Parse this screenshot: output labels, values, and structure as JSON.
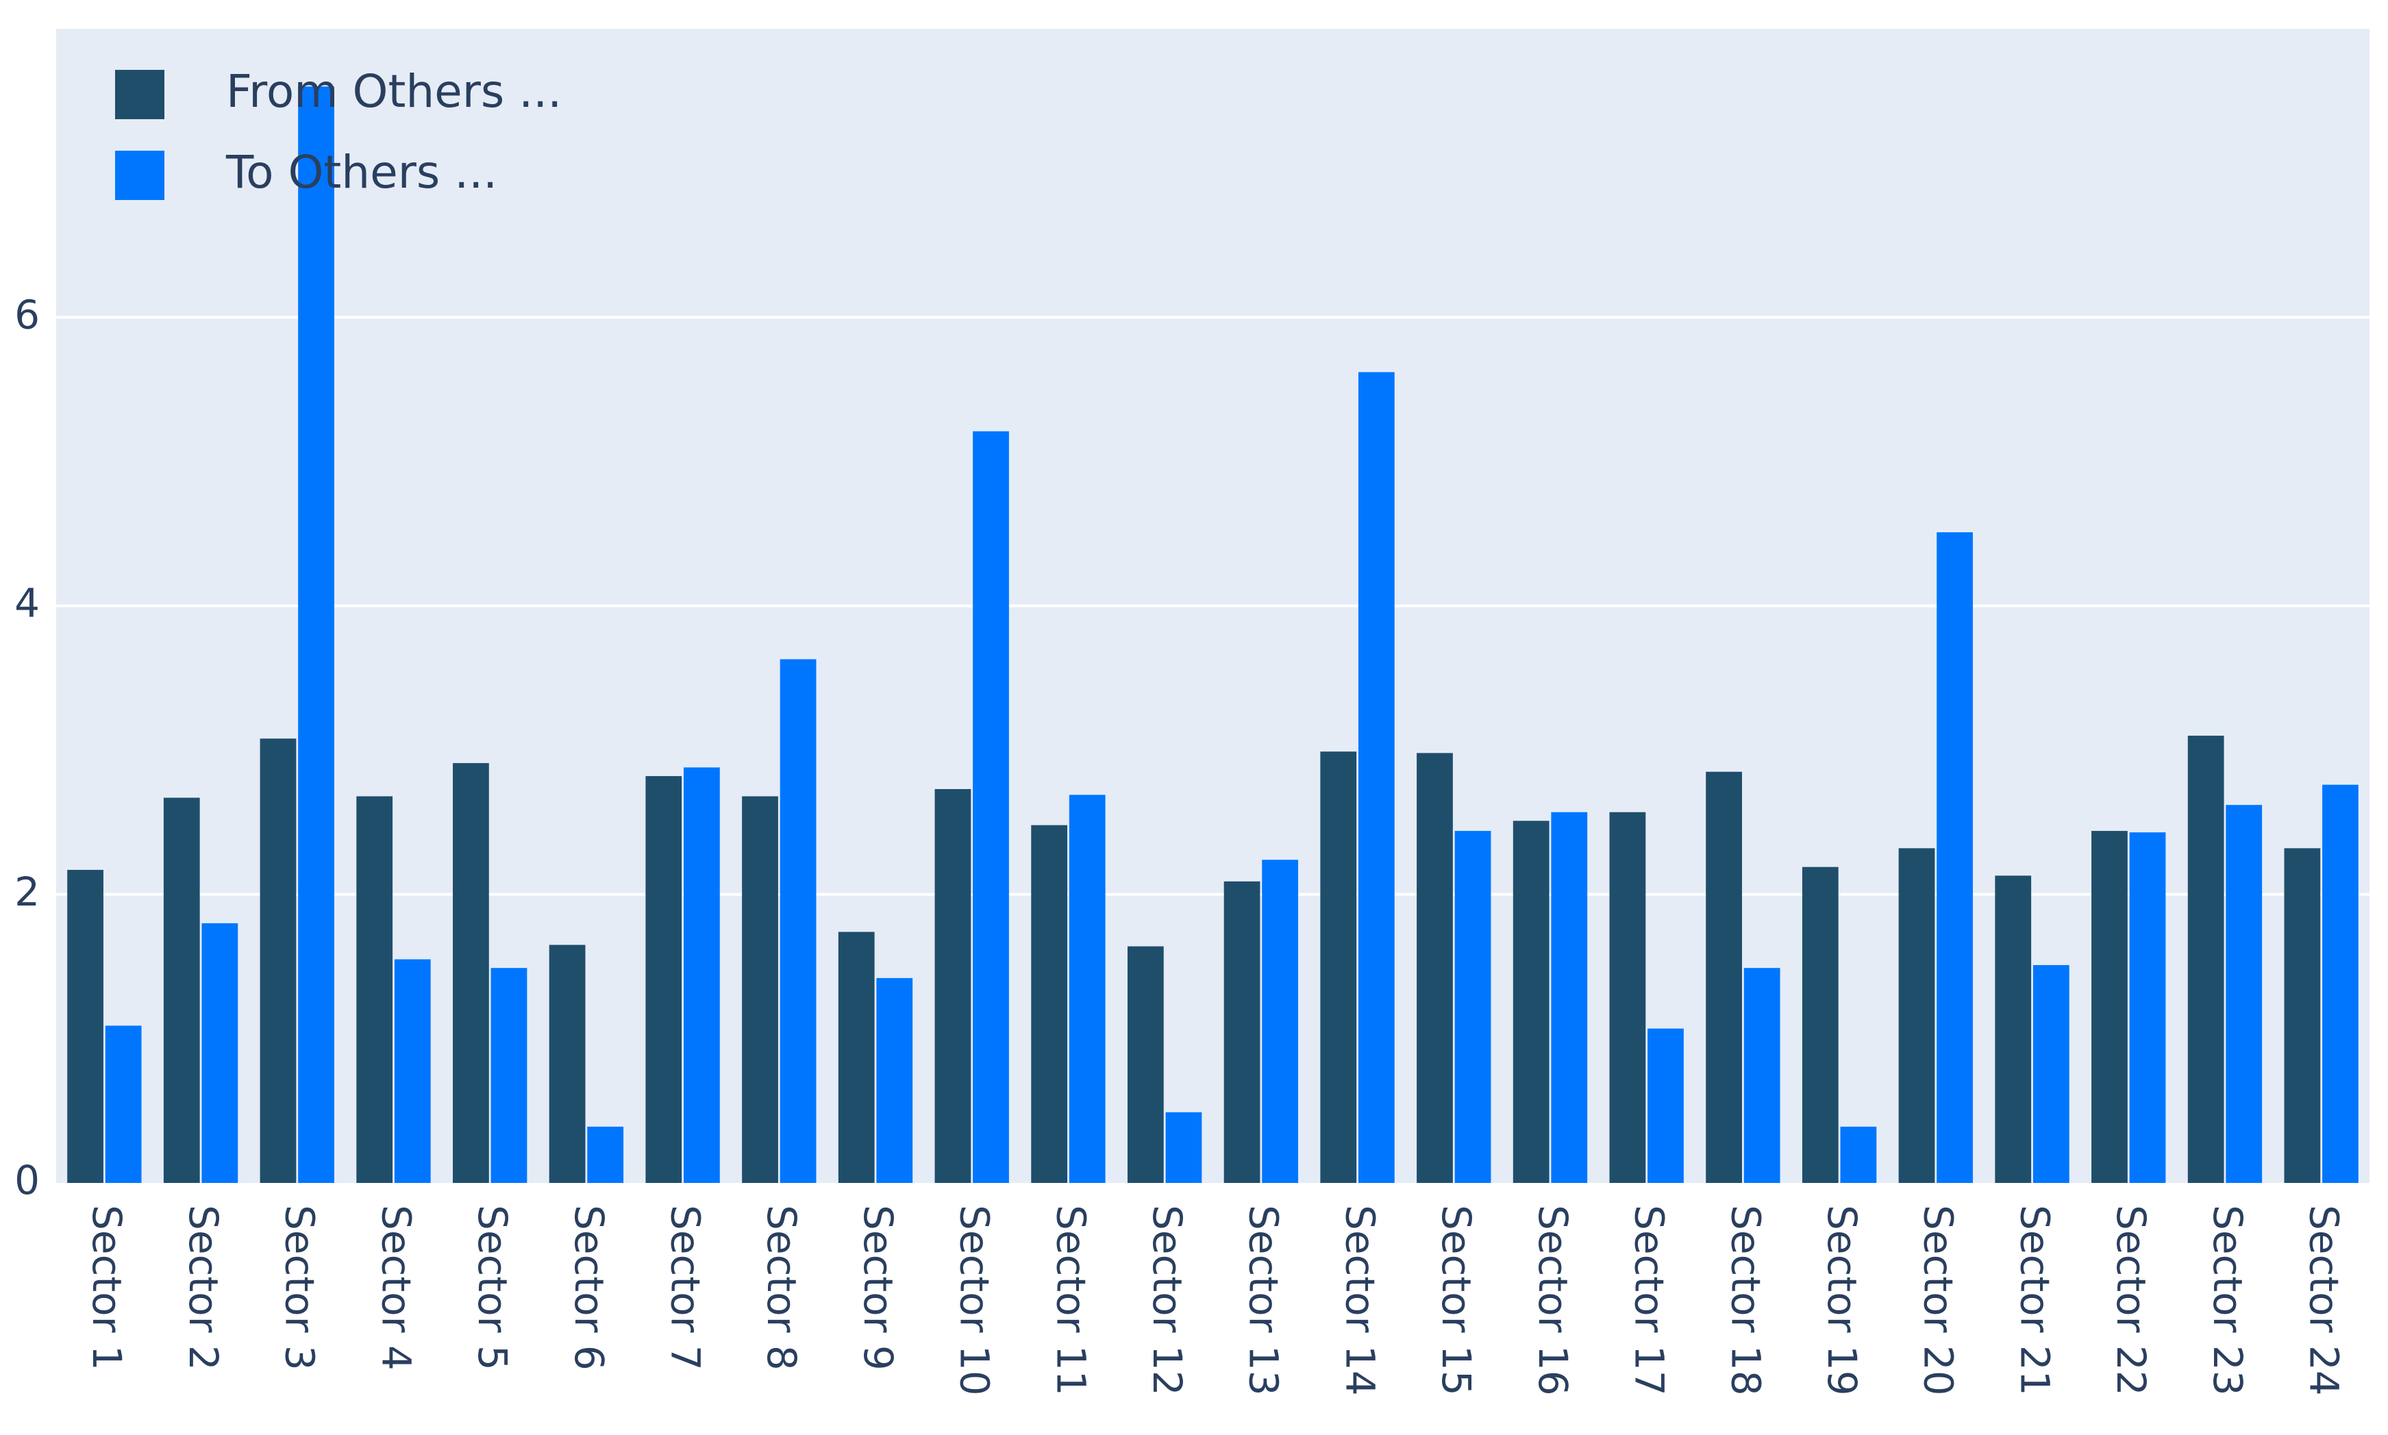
{
  "chart_data": {
    "type": "bar",
    "categories": [
      "Sector 1",
      "Sector 2",
      "Sector 3",
      "Sector 4",
      "Sector 5",
      "Sector 6",
      "Sector 7",
      "Sector 8",
      "Sector 9",
      "Sector 10",
      "Sector 11",
      "Sector 12",
      "Sector 13",
      "Sector 14",
      "Sector 15",
      "Sector 16",
      "Sector 17",
      "Sector 18",
      "Sector 19",
      "Sector 20",
      "Sector 21",
      "Sector 22",
      "Sector 23",
      "Sector 24"
    ],
    "series": [
      {
        "name": "From Others ...",
        "color": "#1f4e6b",
        "values": [
          2.17,
          2.67,
          3.08,
          2.68,
          2.91,
          1.65,
          2.82,
          2.68,
          1.74,
          2.73,
          2.48,
          1.64,
          2.09,
          2.99,
          2.98,
          2.51,
          2.57,
          2.85,
          2.19,
          2.32,
          2.13,
          2.44,
          3.1,
          2.32
        ]
      },
      {
        "name": "To Others ...",
        "color": "#0076ff",
        "values": [
          1.09,
          1.8,
          7.6,
          1.55,
          1.49,
          0.39,
          2.88,
          3.63,
          1.42,
          5.21,
          2.69,
          0.49,
          2.24,
          5.62,
          2.44,
          2.57,
          1.07,
          1.49,
          0.39,
          4.51,
          1.51,
          2.43,
          2.62,
          2.76
        ]
      }
    ],
    "title": "",
    "xlabel": "",
    "ylabel": "",
    "ylim": [
      0,
      8
    ],
    "yticks": [
      0,
      2,
      4,
      6
    ],
    "grid": true,
    "legend_position": "top-left",
    "plot_background": "#e5ecf6",
    "gridline_color": "#ffffff",
    "text_color": "#2a3f5f"
  }
}
